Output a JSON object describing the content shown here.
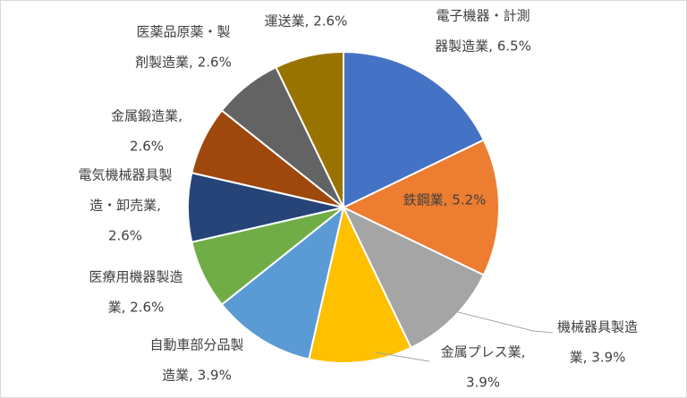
{
  "chart_data": {
    "type": "pie",
    "values": [
      6.5,
      5.2,
      3.9,
      3.9,
      3.9,
      2.6,
      2.6,
      2.6,
      2.6,
      2.6
    ],
    "value_labels": [
      [
        "電子機器・計測",
        "器製造業, 6.5%"
      ],
      [
        "鉄鋼業, 5.2%"
      ],
      [
        "機械器具製造",
        "業, 3.9%"
      ],
      [
        "金属プレス業,",
        "3.9%"
      ],
      [
        "自動車部分品製",
        "造業, 3.9%"
      ],
      [
        "医療用機器製造",
        "業, 2.6%"
      ],
      [
        "電気機械器具製",
        "造・卸売業,",
        "2.6%"
      ],
      [
        "金属鍛造業,",
        "2.6%"
      ],
      [
        "医薬品原薬・製",
        "剤製造業, 2.6%"
      ],
      [
        "運送業, 2.6%"
      ]
    ],
    "colors": [
      "#4472c4",
      "#ed7d31",
      "#a5a5a5",
      "#ffc000",
      "#5b9bd5",
      "#70ad47",
      "#264478",
      "#9e480e",
      "#636363",
      "#997300"
    ]
  }
}
